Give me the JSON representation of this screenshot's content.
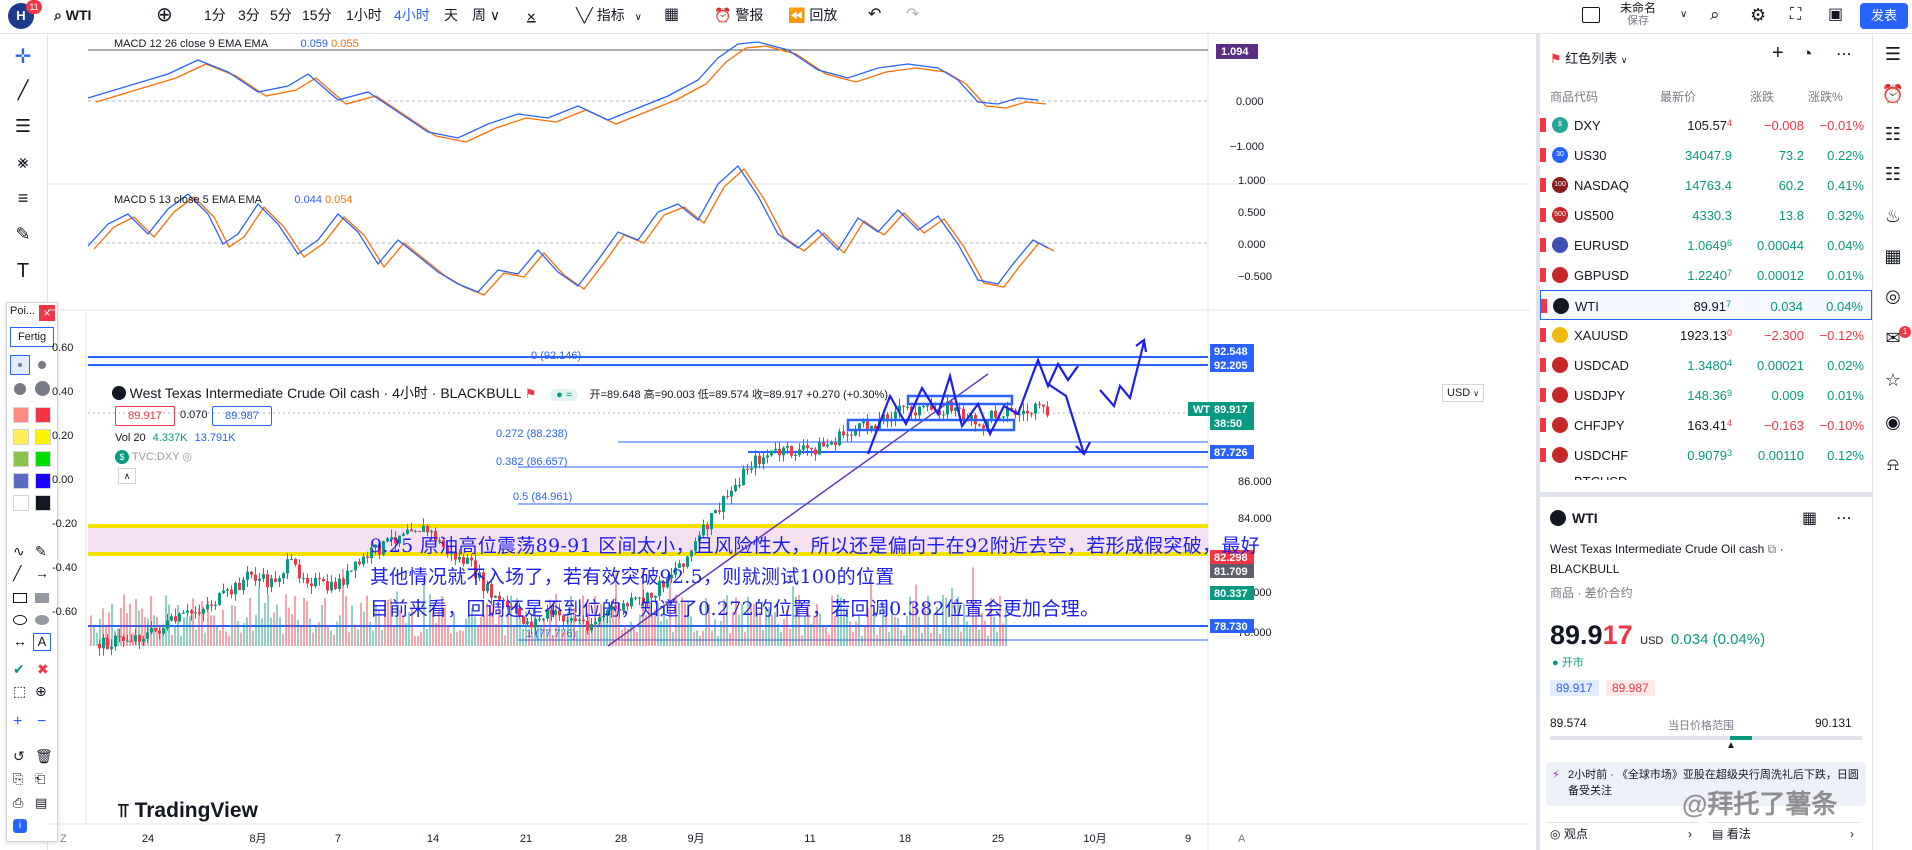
{
  "toolbar": {
    "logo_badge": "11",
    "symbol": "WTI",
    "intervals": [
      "1分",
      "3分",
      "5分",
      "15分",
      "1小时",
      "4小时",
      "天",
      "周"
    ],
    "active_interval": "4小时",
    "indicators_label": "指标",
    "alert_label": "警报",
    "replay_label": "回放",
    "layout_name": "未命名",
    "layout_status": "保存",
    "publish_label": "发表"
  },
  "macd1": {
    "title": "MACD 12 26 close 9 EMA EMA",
    "val1": "0.059",
    "val2": "0.055",
    "axis": [
      "0.000",
      "−1.000"
    ],
    "tag": "1.094"
  },
  "macd2": {
    "title": "MACD 5 13 close 5 EMA EMA",
    "val1": "0.044",
    "val2": "0.054",
    "axis": [
      "1.000",
      "0.500",
      "0.000",
      "−0.500"
    ]
  },
  "main": {
    "title": "West Texas Intermediate Crude Oil cash · 4小时 · BLACKBULL",
    "ohlc": "开=89.648 高=90.003 低=89.574 收=89.917 +0.270 (+0.30%)",
    "bid": "89.917",
    "spread": "0.070",
    "ask": "89.987",
    "vol": "Vol 20",
    "vol1": "4.337K",
    "vol2": "13.791K",
    "compare": "TVC:DXY",
    "currency": "USD",
    "left_axis": [
      "0.60",
      "0.40",
      "0.20",
      "0.00",
      "-0.20",
      "-0.40",
      "-0.60"
    ],
    "right_axis": [
      "86.000",
      "84.000",
      "80.000",
      "78.000"
    ],
    "tag_top1": "92.548",
    "tag_top2": "92.205",
    "tag_wti": "WTI",
    "tag_price": "89.917",
    "tag_timer": "38:50",
    "tag_887": "87.726",
    "tag_822": "82.298",
    "tag_817": "81.709",
    "tag_803": "80.337",
    "tag_787": "78.730",
    "fib_0": "0 (92.146)",
    "fib_272": "0.272 (88.238)",
    "fib_382": "0.382 (86.657)",
    "fib_5": "0.5 (84.961)",
    "fib_1": "1 (77.776)",
    "note1": "9.25 原油高位震荡89-91 区间太小，且风险性大，所以还是偏向于在92附近去空，若形成假突破，最好",
    "note2": "其他情况就不入场了，若有效突破92.5，则就测试100的位置",
    "note3": "目前来看，回调还是不到位的，知道了0.272的位置，若回调0.382位置会更加合理。",
    "brand": "TradingView",
    "dates": [
      "24",
      "8月",
      "7",
      "14",
      "21",
      "28",
      "9月",
      "11",
      "18",
      "25",
      "10月",
      "9"
    ]
  },
  "float_panel": {
    "title": "Poi...",
    "close": "×",
    "button": "Fertig"
  },
  "watchlist": {
    "title": "红色列表",
    "cols": [
      "商品代码",
      "最新价",
      "涨跌",
      "涨跌%"
    ],
    "rows": [
      {
        "sym": "DXY",
        "price": "105.57",
        "sup": "4",
        "chg": "−0.008",
        "pct": "−0.01%",
        "color": "#f23645",
        "ic": "$",
        "icbg": "#26a69a"
      },
      {
        "sym": "US30",
        "price": "34047.9",
        "sup": "",
        "chg": "73.2",
        "pct": "0.22%",
        "color": "#089981",
        "ic": "30",
        "icbg": "#2962ff"
      },
      {
        "sym": "NASDAQ",
        "price": "14763.4",
        "sup": "",
        "chg": "60.2",
        "pct": "0.41%",
        "color": "#089981",
        "ic": "100",
        "icbg": "#8b1a1a"
      },
      {
        "sym": "US500",
        "price": "4330.3",
        "sup": "",
        "chg": "13.8",
        "pct": "0.32%",
        "color": "#089981",
        "ic": "500",
        "icbg": "#c62828"
      },
      {
        "sym": "EURUSD",
        "price": "1.0649",
        "sup": "6",
        "chg": "0.00044",
        "pct": "0.04%",
        "color": "#089981",
        "ic": "",
        "icbg": "#3f51b5"
      },
      {
        "sym": "GBPUSD",
        "price": "1.2240",
        "sup": "7",
        "chg": "0.00012",
        "pct": "0.01%",
        "color": "#089981",
        "ic": "",
        "icbg": "#c62828"
      },
      {
        "sym": "WTI",
        "price": "89.91",
        "sup": "7",
        "chg": "0.034",
        "pct": "0.04%",
        "color": "#089981",
        "ic": "",
        "icbg": "#131722"
      },
      {
        "sym": "XAUUSD",
        "price": "1923.13",
        "sup": "0",
        "chg": "−2.300",
        "pct": "−0.12%",
        "color": "#f23645",
        "ic": "",
        "icbg": "#f0b90b"
      },
      {
        "sym": "USDCAD",
        "price": "1.3480",
        "sup": "4",
        "chg": "0.00021",
        "pct": "0.02%",
        "color": "#089981",
        "ic": "",
        "icbg": "#c62828"
      },
      {
        "sym": "USDJPY",
        "price": "148.36",
        "sup": "9",
        "chg": "0.009",
        "pct": "0.01%",
        "color": "#089981",
        "ic": "",
        "icbg": "#c62828"
      },
      {
        "sym": "CHFJPY",
        "price": "163.41",
        "sup": "4",
        "chg": "−0.163",
        "pct": "−0.10%",
        "color": "#f23645",
        "ic": "",
        "icbg": "#c62828"
      },
      {
        "sym": "USDCHF",
        "price": "0.9079",
        "sup": "3",
        "chg": "0.00110",
        "pct": "0.12%",
        "color": "#089981",
        "ic": "",
        "icbg": "#c62828"
      }
    ],
    "cut_row": "BTCUSD"
  },
  "details": {
    "symbol": "WTI",
    "name": "West Texas Intermediate Crude Oil cash",
    "exchange": "BLACKBULL",
    "type": "商品 · 差价合约",
    "price_main": "89.9",
    "price_tail": "17",
    "currency": "USD",
    "change": "0.034 (0.04%)",
    "status": "开市",
    "bid": "89.917",
    "ask": "89.987",
    "range_low": "89.574",
    "range_label": "当日价格范围",
    "range_high": "90.131",
    "news": "2小时前 · 《全球市场》亚股在超级央行周洗礼后下跌，日圆备受关注",
    "bottom_left": "观点",
    "bottom_right": "看法",
    "watermark": "@拜托了薯条"
  },
  "colors": {
    "accent": "#2962ff",
    "up": "#089981",
    "down": "#f23645",
    "annotation": "#1d1df0",
    "macd": "#2962ff",
    "signal": "#ff6d00"
  }
}
